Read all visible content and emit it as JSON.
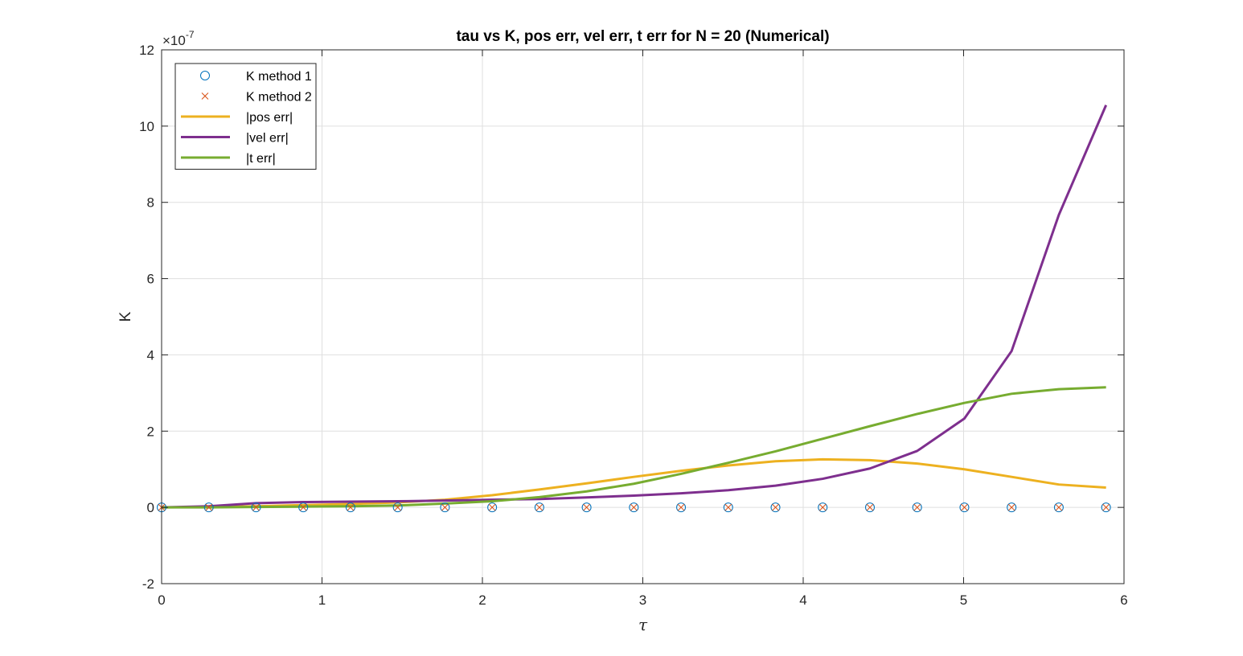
{
  "chart_data": {
    "type": "line",
    "title": "tau vs K, pos err, vel err, t err for N = 20 (Numerical)",
    "xlabel": "τ",
    "ylabel": "K",
    "xlim": [
      0,
      6
    ],
    "ylim": [
      -2e-07,
      1.2e-06
    ],
    "xticks": [
      0,
      1,
      2,
      3,
      4,
      5,
      6
    ],
    "yticks": [
      -2e-07,
      0,
      2e-07,
      4e-07,
      6e-07,
      8e-07,
      1e-06,
      1.2e-06
    ],
    "ytick_labels": [
      "-2",
      "0",
      "2",
      "4",
      "6",
      "8",
      "10",
      "12"
    ],
    "y_exponent_base": "×10",
    "y_exponent_power": "-7",
    "grid": true,
    "legend_position": "top-left",
    "x": [
      0,
      0.2944,
      0.5888,
      0.8832,
      1.1776,
      1.472,
      1.7664,
      2.0608,
      2.3552,
      2.6496,
      2.944,
      3.2384,
      3.5328,
      3.8272,
      4.1216,
      4.416,
      4.7104,
      5.0048,
      5.2992,
      5.5936,
      5.888
    ],
    "series": [
      {
        "name": "K method 1",
        "style": "marker-o",
        "color": "#0072BD",
        "values": [
          0,
          0,
          0,
          0,
          0,
          0,
          0,
          0,
          0,
          0,
          0,
          0,
          0,
          0,
          0,
          0,
          0,
          0,
          0,
          0,
          0
        ]
      },
      {
        "name": "K method 2",
        "style": "marker-x",
        "color": "#D95319",
        "values": [
          0,
          0,
          0,
          0,
          0,
          0,
          0,
          0,
          0,
          0,
          0,
          0,
          0,
          0,
          0,
          0,
          0,
          0,
          0,
          0,
          0
        ]
      },
      {
        "name": "|pos err|",
        "style": "line",
        "color": "#EDB120",
        "values": [
          0,
          1e-09,
          3e-09,
          6e-09,
          9e-09,
          1.3e-08,
          2e-08,
          3.2e-08,
          4.7e-08,
          6.3e-08,
          8e-08,
          9.6e-08,
          1.1e-07,
          1.21e-07,
          1.26e-07,
          1.24e-07,
          1.15e-07,
          1e-07,
          8e-08,
          6e-08,
          5.2e-08
        ]
      },
      {
        "name": "|vel err|",
        "style": "line",
        "color": "#7E2F8E",
        "values": [
          0,
          3e-09,
          1.1e-08,
          1.4e-08,
          1.5e-08,
          1.6e-08,
          1.8e-08,
          2e-08,
          2.2e-08,
          2.6e-08,
          3.1e-08,
          3.7e-08,
          4.5e-08,
          5.7e-08,
          7.5e-08,
          1.02e-07,
          1.48e-07,
          2.33e-07,
          4.1e-07,
          7.67e-07,
          1.055e-06
        ]
      },
      {
        "name": "|t err|",
        "style": "line",
        "color": "#77AC30",
        "values": [
          0,
          0,
          1e-09,
          2e-09,
          3e-09,
          5e-09,
          1e-08,
          1.6e-08,
          2.7e-08,
          4.2e-08,
          6.2e-08,
          8.8e-08,
          1.17e-07,
          1.47e-07,
          1.8e-07,
          2.13e-07,
          2.45e-07,
          2.74e-07,
          2.98e-07,
          3.1e-07,
          3.15e-07
        ]
      }
    ]
  }
}
